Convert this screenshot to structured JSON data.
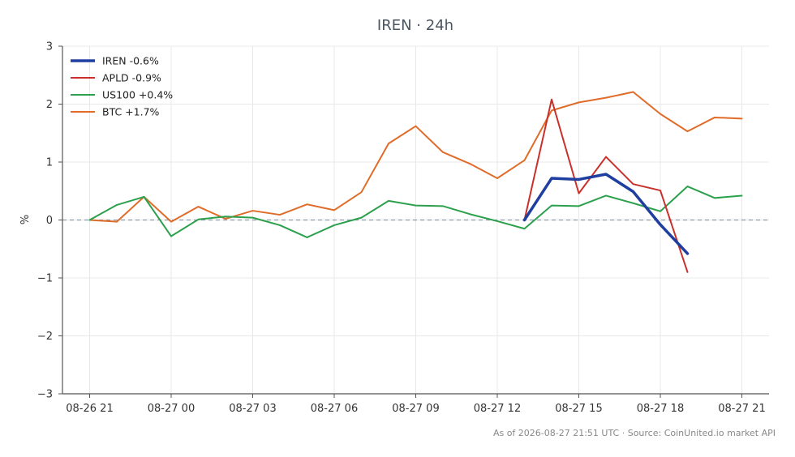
{
  "chart_data": {
    "type": "line",
    "title": "IREN · 24h",
    "xlabel": "",
    "ylabel": "%",
    "ylim": [
      -3,
      3
    ],
    "xlim": [
      "08-26 20",
      "08-27 22"
    ],
    "grid": true,
    "zero_line": true,
    "legend_position": "top-left",
    "x_ticks": [
      "08-26 21",
      "08-27 00",
      "08-27 03",
      "08-27 06",
      "08-27 09",
      "08-27 12",
      "08-27 15",
      "08-27 18",
      "08-27 21"
    ],
    "y_ticks": [
      "3",
      "2",
      "1",
      "0",
      "−1",
      "−2",
      "−3"
    ],
    "x": [
      "08-26 21",
      "08-26 22",
      "08-26 23",
      "08-27 00",
      "08-27 01",
      "08-27 02",
      "08-27 03",
      "08-27 04",
      "08-27 05",
      "08-27 06",
      "08-27 07",
      "08-27 08",
      "08-27 09",
      "08-27 10",
      "08-27 11",
      "08-27 12",
      "08-27 13",
      "08-27 14",
      "08-27 15",
      "08-27 16",
      "08-27 17",
      "08-27 18",
      "08-27 19",
      "08-27 20",
      "08-27 21"
    ],
    "series": [
      {
        "name": "IREN -0.6%",
        "color": "#1f3fa0",
        "width": 3.5,
        "values": [
          null,
          null,
          null,
          null,
          null,
          null,
          null,
          null,
          null,
          null,
          null,
          null,
          null,
          null,
          null,
          null,
          0.0,
          0.72,
          0.7,
          0.79,
          0.49,
          -0.08,
          -0.58,
          null,
          null
        ]
      },
      {
        "name": "APLD -0.9%",
        "color": "#c9302c",
        "width": 2,
        "values": [
          null,
          null,
          null,
          null,
          null,
          null,
          null,
          null,
          null,
          null,
          null,
          null,
          null,
          null,
          null,
          null,
          0.0,
          2.08,
          0.46,
          1.09,
          0.62,
          0.51,
          -0.9,
          null,
          null
        ]
      },
      {
        "name": "US100 +0.4%",
        "color": "#2ca04c",
        "width": 2,
        "values": [
          0.0,
          0.26,
          0.4,
          -0.28,
          0.01,
          0.06,
          0.04,
          -0.09,
          -0.3,
          -0.09,
          0.04,
          0.33,
          0.25,
          0.24,
          0.1,
          -0.02,
          -0.15,
          0.25,
          0.24,
          0.42,
          0.29,
          0.15,
          0.58,
          0.38,
          0.42
        ]
      },
      {
        "name": "BTC +1.7%",
        "color": "#e06c2a",
        "width": 2,
        "values": [
          0.0,
          -0.03,
          0.4,
          -0.03,
          0.23,
          0.02,
          0.16,
          0.09,
          0.27,
          0.17,
          0.48,
          1.32,
          1.62,
          1.17,
          0.97,
          0.72,
          1.03,
          1.89,
          2.03,
          2.11,
          2.21,
          1.83,
          1.53,
          1.77,
          1.75
        ]
      }
    ]
  },
  "footer": "As of 2026-08-27 21:51 UTC · Source: CoinUnited.io market API",
  "colors": {
    "axis": "#555555",
    "grid": "#e8e8e8",
    "zero_line": "#8a9aaa"
  }
}
